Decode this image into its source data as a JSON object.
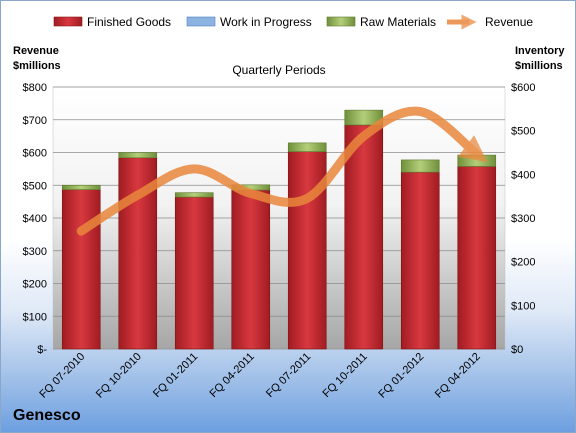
{
  "company": "Genesco",
  "chart_data": {
    "type": "bar",
    "subtitle": "Quarterly Periods",
    "left_axis_title": [
      "Revenue",
      "$millions"
    ],
    "right_axis_title": [
      "Inventory",
      "$millions"
    ],
    "categories": [
      "FQ 07-2010",
      "FQ 10-2010",
      "FQ 01-2011",
      "FQ 04-2011",
      "FQ 07-2011",
      "FQ 10-2011",
      "FQ 01-2012",
      "FQ 04-2012"
    ],
    "left_ticks": [
      "$-",
      "$100",
      "$200",
      "$300",
      "$400",
      "$500",
      "$600",
      "$700",
      "$800"
    ],
    "right_ticks": [
      "$0",
      "$100",
      "$200",
      "$300",
      "$400",
      "$500",
      "$600"
    ],
    "left_ylim": [
      0,
      800
    ],
    "right_ylim": [
      0,
      600
    ],
    "legend_position": "top",
    "series": [
      {
        "name": "Finished Goods",
        "axis": "right",
        "kind": "stacked-bar",
        "color": "#c0272d",
        "values": [
          365,
          438,
          348,
          364,
          452,
          513,
          405,
          418
        ]
      },
      {
        "name": "Work in Progress",
        "axis": "right",
        "kind": "stacked-bar",
        "color": "#4f81bd",
        "values": [
          0,
          0,
          0,
          0,
          0,
          0,
          0,
          0
        ]
      },
      {
        "name": "Raw Materials",
        "axis": "right",
        "kind": "stacked-bar",
        "color": "#9bbb59",
        "values": [
          10,
          12,
          10,
          12,
          20,
          34,
          28,
          26
        ]
      },
      {
        "name": "Revenue",
        "axis": "left",
        "kind": "line",
        "color": "#e9873c",
        "values": [
          360,
          470,
          550,
          475,
          460,
          650,
          725,
          595
        ]
      }
    ]
  }
}
